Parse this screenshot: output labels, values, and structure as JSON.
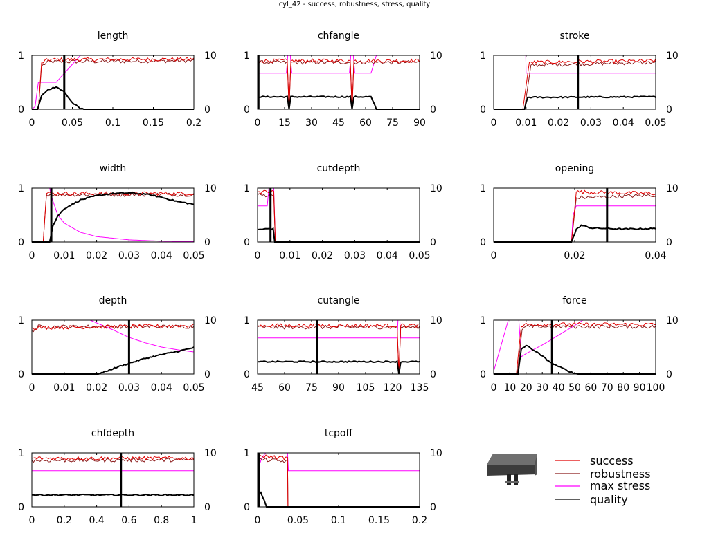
{
  "page_title": "cyl_42 - success, robustness, stress, quality",
  "legend": {
    "placement": "bottom-right",
    "items": [
      {
        "label": "success",
        "color": "#e00000"
      },
      {
        "label": "robustness",
        "color": "#8b1a1a"
      },
      {
        "label": "max stress",
        "color": "#ff00ff"
      },
      {
        "label": "quality",
        "color": "#000000"
      }
    ]
  },
  "part_image": "gray-extruded-block-with-two-pins-icon",
  "chart_data": [
    {
      "type": "line",
      "title": "length",
      "xlim": [
        0,
        0.2
      ],
      "xticks": [
        "0",
        "0.05",
        "0.1",
        "0.15",
        "0.2"
      ],
      "y1lim": [
        0,
        1
      ],
      "y1ticks": [
        "0",
        "1"
      ],
      "y2lim": [
        0,
        10
      ],
      "y2ticks": [
        "0",
        "10"
      ],
      "marker_x": 0.04,
      "success": [
        [
          0,
          0
        ],
        [
          0.008,
          0
        ],
        [
          0.012,
          0.86
        ],
        [
          0.02,
          0.92
        ],
        [
          0.2,
          0.93
        ]
      ],
      "robustness": [
        [
          0,
          0
        ],
        [
          0.008,
          0
        ],
        [
          0.012,
          0.8
        ],
        [
          0.02,
          0.88
        ],
        [
          0.2,
          0.9
        ]
      ],
      "max_stress": [
        [
          0,
          0
        ],
        [
          0.004,
          0.5
        ],
        [
          0.008,
          5
        ],
        [
          0.03,
          5
        ],
        [
          0.06,
          10
        ],
        [
          0.2,
          10
        ]
      ],
      "quality": [
        [
          0,
          0
        ],
        [
          0.007,
          0
        ],
        [
          0.012,
          2.5
        ],
        [
          0.02,
          3.6
        ],
        [
          0.03,
          4.2
        ],
        [
          0.04,
          3.2
        ],
        [
          0.05,
          1.2
        ],
        [
          0.06,
          0.1
        ],
        [
          0.07,
          0
        ],
        [
          0.2,
          0
        ]
      ]
    },
    {
      "type": "line",
      "title": "chfangle",
      "xlim": [
        0,
        90
      ],
      "xticks": [
        "0",
        "15",
        "30",
        "45",
        "60",
        "75",
        "90"
      ],
      "y1lim": [
        0,
        1
      ],
      "y1ticks": [
        "0",
        "1"
      ],
      "y2lim": [
        0,
        10
      ],
      "y2ticks": [
        "0",
        "10"
      ],
      "marker_x": 0.5,
      "success": [
        [
          0,
          0.9
        ],
        [
          16.5,
          0.9
        ],
        [
          17.5,
          0
        ],
        [
          18.5,
          0.9
        ],
        [
          51.5,
          0.9
        ],
        [
          52.5,
          0
        ],
        [
          53.5,
          0.9
        ],
        [
          90,
          0.9
        ]
      ],
      "robustness": [
        [
          0,
          0.87
        ],
        [
          16.5,
          0.87
        ],
        [
          17.5,
          0
        ],
        [
          18.5,
          0.87
        ],
        [
          51.5,
          0.87
        ],
        [
          52.5,
          0
        ],
        [
          53.5,
          0.87
        ],
        [
          90,
          0.87
        ]
      ],
      "max_stress": [
        [
          0,
          6.7
        ],
        [
          16,
          6.7
        ],
        [
          16.8,
          10
        ],
        [
          18.2,
          10
        ],
        [
          19,
          6.7
        ],
        [
          51,
          6.7
        ],
        [
          51.8,
          10
        ],
        [
          53.2,
          10
        ],
        [
          54,
          6.7
        ],
        [
          63,
          6.7
        ],
        [
          66,
          10
        ],
        [
          90,
          10
        ]
      ],
      "quality": [
        [
          0,
          2.3
        ],
        [
          16.5,
          2.3
        ],
        [
          17.5,
          0
        ],
        [
          18.5,
          2.3
        ],
        [
          51.5,
          2.3
        ],
        [
          52.5,
          0
        ],
        [
          53.5,
          2.3
        ],
        [
          63,
          2.3
        ],
        [
          66,
          0
        ],
        [
          90,
          0
        ]
      ]
    },
    {
      "type": "line",
      "title": "stroke",
      "xlim": [
        0,
        0.05
      ],
      "xticks": [
        "0",
        "0.01",
        "0.02",
        "0.03",
        "0.04",
        "0.05"
      ],
      "y1lim": [
        0,
        1
      ],
      "y1ticks": [
        "0",
        "1"
      ],
      "y2lim": [
        0,
        10
      ],
      "y2ticks": [
        "0",
        "10"
      ],
      "marker_x": 0.026,
      "success": [
        [
          0,
          0
        ],
        [
          0.009,
          0
        ],
        [
          0.011,
          0.87
        ],
        [
          0.05,
          0.9
        ]
      ],
      "robustness": [
        [
          0,
          0
        ],
        [
          0.0095,
          0
        ],
        [
          0.0115,
          0.82
        ],
        [
          0.05,
          0.87
        ]
      ],
      "max_stress": [
        [
          0.0099,
          10
        ],
        [
          0.01,
          6.7
        ],
        [
          0.05,
          6.7
        ]
      ],
      "quality": [
        [
          0,
          0
        ],
        [
          0.0095,
          0
        ],
        [
          0.01,
          1.2
        ],
        [
          0.0105,
          2.2
        ],
        [
          0.05,
          2.3
        ]
      ]
    },
    {
      "type": "line",
      "title": "width",
      "xlim": [
        0,
        0.05
      ],
      "xticks": [
        "0",
        "0.01",
        "0.02",
        "0.03",
        "0.04",
        "0.05"
      ],
      "y1lim": [
        0,
        1
      ],
      "y1ticks": [
        "0",
        "1"
      ],
      "y2lim": [
        0,
        10
      ],
      "y2ticks": [
        "0",
        "10"
      ],
      "marker_x": 0.006,
      "success": [
        [
          0,
          0
        ],
        [
          0.0035,
          0
        ],
        [
          0.0045,
          0.9
        ],
        [
          0.05,
          0.9
        ]
      ],
      "robustness": [
        [
          0,
          0
        ],
        [
          0.0035,
          0
        ],
        [
          0.0045,
          0.88
        ],
        [
          0.05,
          0.88
        ]
      ],
      "max_stress": [
        [
          0.0055,
          10
        ],
        [
          0.006,
          8.5
        ],
        [
          0.008,
          5
        ],
        [
          0.01,
          3.5
        ],
        [
          0.015,
          1.8
        ],
        [
          0.02,
          1
        ],
        [
          0.03,
          0.4
        ],
        [
          0.04,
          0.15
        ],
        [
          0.05,
          0.1
        ]
      ],
      "quality": [
        [
          0,
          0
        ],
        [
          0.0055,
          0
        ],
        [
          0.0065,
          3
        ],
        [
          0.008,
          4.8
        ],
        [
          0.01,
          6.2
        ],
        [
          0.015,
          7.8
        ],
        [
          0.02,
          8.6
        ],
        [
          0.025,
          9
        ],
        [
          0.03,
          9.1
        ],
        [
          0.035,
          8.9
        ],
        [
          0.04,
          8.3
        ],
        [
          0.045,
          7.5
        ],
        [
          0.05,
          7
        ]
      ]
    },
    {
      "type": "line",
      "title": "cutdepth",
      "xlim": [
        0,
        0.05
      ],
      "xticks": [
        "0",
        "0.01",
        "0.02",
        "0.03",
        "0.04",
        "0.05"
      ],
      "y1lim": [
        0,
        1
      ],
      "y1ticks": [
        "0",
        "1"
      ],
      "y2lim": [
        0,
        10
      ],
      "y2ticks": [
        "0",
        "10"
      ],
      "marker_x": 0.004,
      "success": [
        [
          0,
          0.93
        ],
        [
          0.005,
          0.93
        ],
        [
          0.0055,
          0
        ],
        [
          0.05,
          0
        ]
      ],
      "robustness": [
        [
          0,
          0.87
        ],
        [
          0.005,
          0.87
        ],
        [
          0.0055,
          0
        ],
        [
          0.05,
          0
        ]
      ],
      "max_stress": [
        [
          0,
          6.7
        ],
        [
          0.003,
          6.7
        ],
        [
          0.0035,
          10
        ],
        [
          0.005,
          10
        ],
        [
          0.0055,
          0
        ],
        [
          0.05,
          0
        ]
      ],
      "quality": [
        [
          0,
          2.3
        ],
        [
          0.004,
          2.5
        ],
        [
          0.0048,
          2.4
        ],
        [
          0.0053,
          0
        ],
        [
          0.05,
          0
        ]
      ]
    },
    {
      "type": "line",
      "title": "opening",
      "xlim": [
        0,
        0.05
      ],
      "xticks": [
        "0",
        "0.02",
        "0.04"
      ],
      "y1lim": [
        0,
        1
      ],
      "y1ticks": [
        "0",
        "1"
      ],
      "y2lim": [
        0,
        10
      ],
      "y2ticks": [
        "0",
        "10"
      ],
      "marker_x": 0.035,
      "success": [
        [
          0,
          0
        ],
        [
          0.024,
          0
        ],
        [
          0.0255,
          0.93
        ],
        [
          0.05,
          0.9
        ]
      ],
      "robustness": [
        [
          0,
          0
        ],
        [
          0.024,
          0
        ],
        [
          0.0255,
          0.82
        ],
        [
          0.05,
          0.87
        ]
      ],
      "max_stress": [
        [
          0,
          0
        ],
        [
          0.024,
          0
        ],
        [
          0.0245,
          5
        ],
        [
          0.0255,
          6.7
        ],
        [
          0.05,
          6.7
        ]
      ],
      "quality": [
        [
          0,
          0
        ],
        [
          0.024,
          0
        ],
        [
          0.0255,
          2.3
        ],
        [
          0.027,
          3.1
        ],
        [
          0.03,
          2.6
        ],
        [
          0.04,
          2.4
        ],
        [
          0.05,
          2.5
        ]
      ]
    },
    {
      "type": "line",
      "title": "depth",
      "xlim": [
        0,
        0.05
      ],
      "xticks": [
        "0",
        "0.01",
        "0.02",
        "0.03",
        "0.04",
        "0.05"
      ],
      "y1lim": [
        0,
        1
      ],
      "y1ticks": [
        "0",
        "1"
      ],
      "y2lim": [
        0,
        10
      ],
      "y2ticks": [
        "0",
        "10"
      ],
      "marker_x": 0.03,
      "success": [
        [
          0,
          0.86
        ],
        [
          0.05,
          0.9
        ]
      ],
      "robustness": [
        [
          0,
          0.8
        ],
        [
          0.002,
          0.88
        ],
        [
          0.05,
          0.88
        ]
      ],
      "max_stress": [
        [
          0.018,
          10
        ],
        [
          0.025,
          8.2
        ],
        [
          0.03,
          6.8
        ],
        [
          0.035,
          5.8
        ],
        [
          0.04,
          5
        ],
        [
          0.045,
          4.5
        ],
        [
          0.05,
          4.1
        ]
      ],
      "quality": [
        [
          0,
          0
        ],
        [
          0.02,
          0
        ],
        [
          0.022,
          0.3
        ],
        [
          0.025,
          1
        ],
        [
          0.03,
          2
        ],
        [
          0.035,
          2.9
        ],
        [
          0.04,
          3.6
        ],
        [
          0.045,
          4.2
        ],
        [
          0.05,
          4.9
        ]
      ]
    },
    {
      "type": "line",
      "title": "cutangle",
      "xlim": [
        45,
        135
      ],
      "xticks": [
        "45",
        "60",
        "75",
        "90",
        "105",
        "120",
        "135"
      ],
      "y1lim": [
        0,
        1
      ],
      "y1ticks": [
        "0",
        "1"
      ],
      "y2lim": [
        0,
        10
      ],
      "y2ticks": [
        "0",
        "10"
      ],
      "marker_x": 78,
      "success": [
        [
          45,
          0.9
        ],
        [
          122.5,
          0.9
        ],
        [
          123.5,
          0
        ],
        [
          124.5,
          0.9
        ],
        [
          135,
          0.9
        ]
      ],
      "robustness": [
        [
          45,
          0.87
        ],
        [
          122.5,
          0.87
        ],
        [
          123.5,
          0
        ],
        [
          124.5,
          0.87
        ],
        [
          135,
          0.87
        ]
      ],
      "max_stress": [
        [
          45,
          6.7
        ],
        [
          122.5,
          6.7
        ],
        [
          123,
          10
        ],
        [
          124,
          10
        ],
        [
          124.5,
          6.7
        ],
        [
          135,
          6.7
        ]
      ],
      "quality": [
        [
          45,
          2.3
        ],
        [
          122.5,
          2.3
        ],
        [
          123.5,
          0
        ],
        [
          124.5,
          2.3
        ],
        [
          135,
          2.3
        ]
      ]
    },
    {
      "type": "line",
      "title": "force",
      "xlim": [
        0,
        100
      ],
      "xticks": [
        "0",
        "10",
        "20",
        "30",
        "40",
        "50",
        "60",
        "70",
        "80",
        "90",
        "100"
      ],
      "y1lim": [
        0,
        1
      ],
      "y1ticks": [
        "0",
        "1"
      ],
      "y2lim": [
        0,
        10
      ],
      "y2ticks": [
        "0",
        "10"
      ],
      "marker_x": 36,
      "success": [
        [
          0,
          0
        ],
        [
          14,
          0
        ],
        [
          17,
          0.88
        ],
        [
          20,
          0.92
        ],
        [
          100,
          0.92
        ]
      ],
      "robustness": [
        [
          0,
          0
        ],
        [
          14.5,
          0
        ],
        [
          17.5,
          0.82
        ],
        [
          20,
          0.88
        ],
        [
          100,
          0.88
        ]
      ],
      "max_stress": [
        [
          0,
          0.5
        ],
        [
          9,
          10
        ],
        [
          15.5,
          10
        ],
        [
          17,
          3.2
        ],
        [
          20,
          3.8
        ],
        [
          30,
          5.4
        ],
        [
          40,
          7.2
        ],
        [
          50,
          9
        ],
        [
          55,
          10
        ],
        [
          100,
          10
        ]
      ],
      "quality": [
        [
          0,
          0
        ],
        [
          15,
          0
        ],
        [
          17,
          4.6
        ],
        [
          20,
          5.3
        ],
        [
          25,
          4.4
        ],
        [
          30,
          3.3
        ],
        [
          35,
          2.2
        ],
        [
          40,
          1.4
        ],
        [
          45,
          0.7
        ],
        [
          50,
          0.1
        ],
        [
          52,
          0
        ],
        [
          100,
          0
        ]
      ]
    },
    {
      "type": "line",
      "title": "chfdepth",
      "xlim": [
        0,
        1
      ],
      "xticks": [
        "0",
        "0.2",
        "0.4",
        "0.6",
        "0.8",
        "1"
      ],
      "y1lim": [
        0,
        1
      ],
      "y1ticks": [
        "0",
        "1"
      ],
      "y2lim": [
        0,
        10
      ],
      "y2ticks": [
        "0",
        "10"
      ],
      "marker_x": 0.55,
      "success": [
        [
          0,
          0.9
        ],
        [
          1,
          0.9
        ]
      ],
      "robustness": [
        [
          0,
          0.86
        ],
        [
          1,
          0.87
        ]
      ],
      "max_stress": [
        [
          0,
          6.7
        ],
        [
          1,
          6.7
        ]
      ],
      "quality": [
        [
          0,
          2.2
        ],
        [
          1,
          2.2
        ]
      ]
    },
    {
      "type": "line",
      "title": "tcpoff",
      "xlim": [
        0,
        0.2
      ],
      "xticks": [
        "0",
        "0.05",
        "0.1",
        "0.15",
        "0.2"
      ],
      "y1lim": [
        0,
        1
      ],
      "y1ticks": [
        "0",
        "1"
      ],
      "y2lim": [
        0,
        10
      ],
      "y2ticks": [
        "0",
        "10"
      ],
      "marker_x": 0.002,
      "success": [
        [
          0,
          0.95
        ],
        [
          0.037,
          0.9
        ],
        [
          0.0375,
          0
        ],
        [
          0.2,
          0
        ]
      ],
      "robustness": [
        [
          0,
          0.88
        ],
        [
          0.037,
          0.84
        ],
        [
          0.0375,
          0
        ],
        [
          0.2,
          0
        ]
      ],
      "max_stress": [
        [
          0,
          6.7
        ],
        [
          0.005,
          9
        ],
        [
          0.01,
          10
        ],
        [
          0.037,
          10
        ],
        [
          0.038,
          6.7
        ],
        [
          0.2,
          6.7
        ]
      ],
      "quality": [
        [
          0,
          2.3
        ],
        [
          0.004,
          2.6
        ],
        [
          0.008,
          1.2
        ],
        [
          0.011,
          0
        ],
        [
          0.2,
          0
        ]
      ]
    }
  ]
}
